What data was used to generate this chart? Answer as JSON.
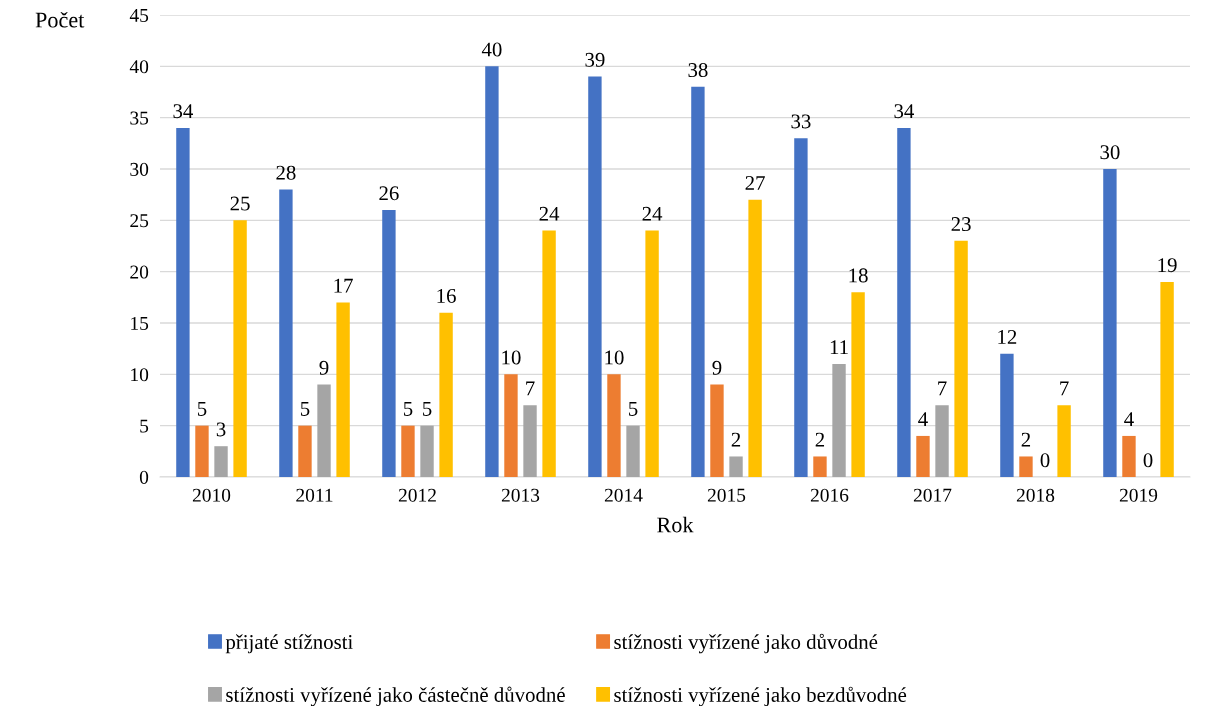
{
  "chart_data": {
    "type": "bar",
    "xlabel": "Rok",
    "ylabel": "Počet",
    "categories": [
      "2010",
      "2011",
      "2012",
      "2013",
      "2014",
      "2015",
      "2016",
      "2017",
      "2018",
      "2019"
    ],
    "series": [
      {
        "name": "přijaté stížnosti",
        "color": "#4472c4",
        "values": [
          34,
          28,
          26,
          40,
          39,
          38,
          33,
          34,
          12,
          30
        ]
      },
      {
        "name": "stížnosti vyřízené jako důvodné",
        "color": "#ed7d31",
        "values": [
          5,
          5,
          5,
          10,
          10,
          9,
          2,
          4,
          2,
          4
        ]
      },
      {
        "name": "stížnosti vyřízené jako částečně důvodné",
        "color": "#a5a5a5",
        "values": [
          3,
          9,
          5,
          7,
          5,
          2,
          11,
          7,
          0,
          0
        ]
      },
      {
        "name": "stížnosti vyřízené jako bezdůvodné",
        "color": "#ffc000",
        "values": [
          25,
          17,
          16,
          24,
          24,
          27,
          18,
          23,
          7,
          19
        ]
      }
    ],
    "ylim": [
      0,
      45
    ],
    "yticks": [
      0,
      5,
      10,
      15,
      20,
      25,
      30,
      35,
      40,
      45
    ],
    "grid": "y",
    "legend": "bottom",
    "data_labels": true
  }
}
